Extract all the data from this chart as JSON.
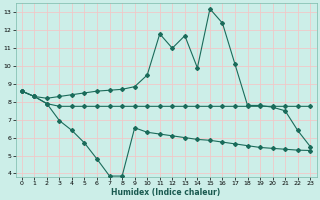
{
  "title": "",
  "xlabel": "Humidex (Indice chaleur)",
  "bg_color": "#cceee8",
  "grid_color": "#f0c8c8",
  "line_color": "#1a6b5a",
  "xlim": [
    -0.5,
    23.5
  ],
  "ylim": [
    3.8,
    13.5
  ],
  "yticks": [
    4,
    5,
    6,
    7,
    8,
    9,
    10,
    11,
    12,
    13
  ],
  "xticks": [
    0,
    1,
    2,
    3,
    4,
    5,
    6,
    7,
    8,
    9,
    10,
    11,
    12,
    13,
    14,
    15,
    16,
    17,
    18,
    19,
    20,
    21,
    22,
    23
  ],
  "line1_x": [
    0,
    1,
    2,
    3,
    4,
    5,
    6,
    7,
    8,
    9,
    10,
    11,
    12,
    13,
    14,
    15,
    16,
    17,
    18,
    19,
    20,
    21,
    22,
    23
  ],
  "line1_y": [
    8.6,
    8.3,
    8.2,
    8.3,
    8.4,
    8.5,
    8.6,
    8.65,
    8.7,
    8.85,
    9.5,
    11.8,
    11.0,
    11.7,
    9.9,
    13.2,
    12.4,
    10.1,
    7.8,
    7.8,
    7.7,
    7.5,
    6.4,
    5.5
  ],
  "line2_x": [
    0,
    1,
    2,
    3,
    4,
    5,
    6,
    7,
    8,
    9,
    10,
    11,
    12,
    13,
    14,
    15,
    16,
    17,
    18,
    19,
    20,
    21,
    22,
    23
  ],
  "line2_y": [
    8.6,
    8.3,
    7.9,
    7.75,
    7.75,
    7.75,
    7.75,
    7.75,
    7.75,
    7.75,
    7.75,
    7.75,
    7.75,
    7.75,
    7.75,
    7.75,
    7.75,
    7.75,
    7.75,
    7.75,
    7.75,
    7.75,
    7.75,
    7.75
  ],
  "line3_x": [
    0,
    1,
    2,
    3,
    4,
    5,
    6,
    7,
    8,
    9,
    10,
    11,
    12,
    13,
    14,
    15,
    16,
    17,
    18,
    19,
    20,
    21,
    22,
    23
  ],
  "line3_y": [
    8.6,
    8.3,
    7.9,
    6.95,
    6.4,
    5.7,
    4.8,
    3.85,
    3.85,
    6.55,
    6.3,
    6.2,
    6.1,
    6.0,
    5.9,
    5.85,
    5.75,
    5.65,
    5.55,
    5.45,
    5.4,
    5.35,
    5.3,
    5.28
  ]
}
